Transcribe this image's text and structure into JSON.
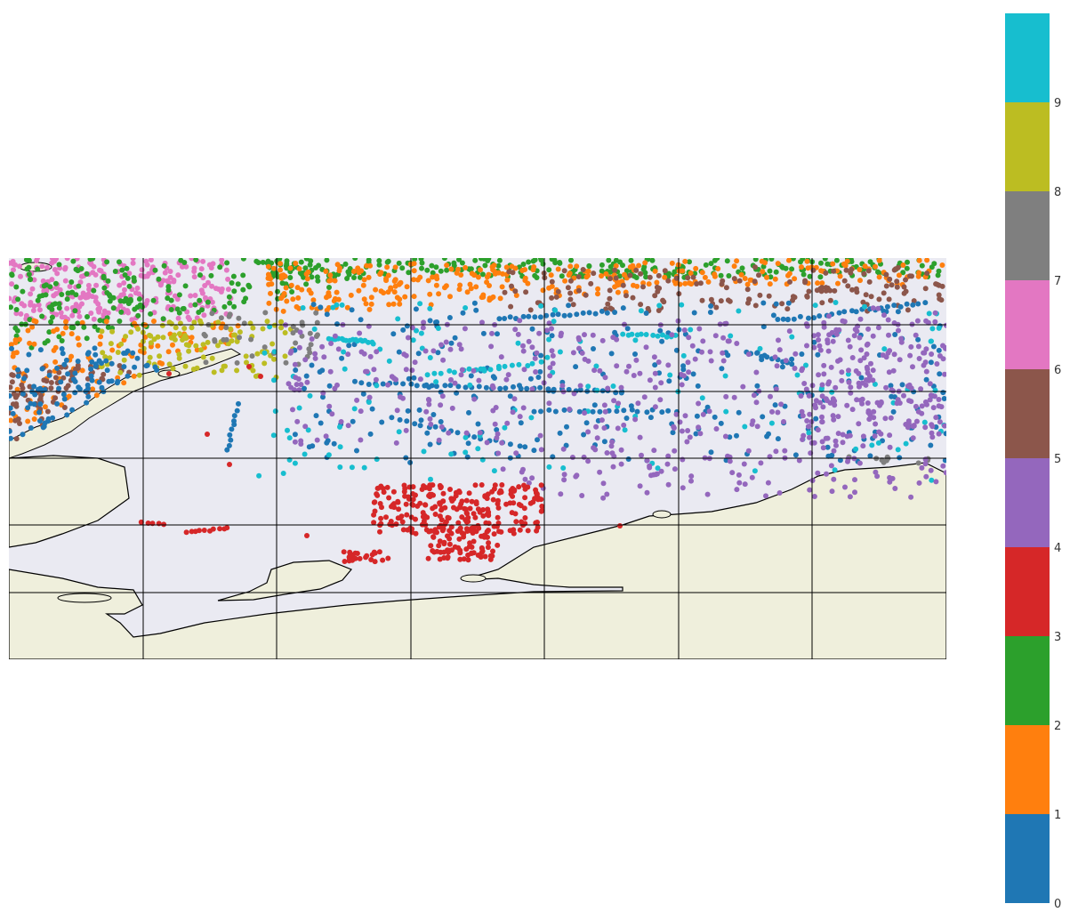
{
  "colorbar": {
    "categories": [
      {
        "label": "0",
        "color": "#1f77b4"
      },
      {
        "label": "1",
        "color": "#ff7f0e"
      },
      {
        "label": "2",
        "color": "#2ca02c"
      },
      {
        "label": "3",
        "color": "#d62728"
      },
      {
        "label": "4",
        "color": "#9467bd"
      },
      {
        "label": "5",
        "color": "#8c564b"
      },
      {
        "label": "6",
        "color": "#e377c2"
      },
      {
        "label": "7",
        "color": "#7f7f7f"
      },
      {
        "label": "8",
        "color": "#bcbd22"
      },
      {
        "label": "9",
        "color": "#17becf"
      }
    ]
  },
  "map": {
    "ocean_color": "#eaeaf2",
    "land_color": "#efefdc",
    "coastline_color": "#000000",
    "gridline_color": "#000000"
  },
  "chart_data": {
    "type": "scatter",
    "title": "",
    "xlabel": "",
    "ylabel": "",
    "legend": "colorbar-right",
    "grid": true,
    "series": [
      {
        "value": 0,
        "color": "#1f77b4",
        "extent": "widespread; dense tracks in central and eastern ocean"
      },
      {
        "value": 1,
        "color": "#ff7f0e",
        "extent": "northern band and western coast"
      },
      {
        "value": 2,
        "color": "#2ca02c",
        "extent": "northern edge, dense in north-west"
      },
      {
        "value": 3,
        "color": "#d62728",
        "extent": "southern shelf cluster in central south"
      },
      {
        "value": 4,
        "color": "#9467bd",
        "extent": "central and eastern ocean"
      },
      {
        "value": 5,
        "color": "#8c564b",
        "extent": "north-east band and western coast"
      },
      {
        "value": 6,
        "color": "#e377c2",
        "extent": "far north-west corner"
      },
      {
        "value": 7,
        "color": "#7f7f7f",
        "extent": "sparse near west peninsula and eastern shelf edge"
      },
      {
        "value": 8,
        "color": "#bcbd22",
        "extent": "west peninsula tip"
      },
      {
        "value": 9,
        "color": "#17becf",
        "extent": "central-north ocean tracks"
      }
    ]
  }
}
